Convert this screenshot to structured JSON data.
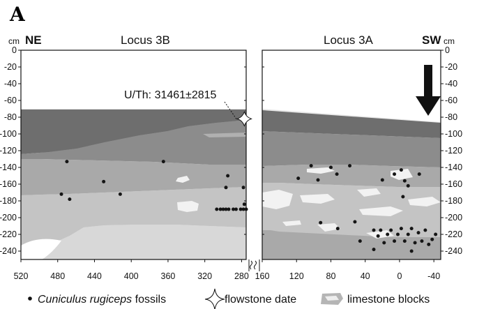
{
  "panel_label": "A",
  "units_left": "cm",
  "units_right": "cm",
  "direction_left": "NE",
  "direction_right": "SW",
  "locus_left": "Locus 3B",
  "locus_right": "Locus 3A",
  "date_label": "U/Th: 31461±2815",
  "depth_ticks": [
    "0",
    "-20",
    "-40",
    "-60",
    "-80",
    "-100",
    "-120",
    "-140",
    "-160",
    "-180",
    "-200",
    "-220",
    "-240"
  ],
  "x_ticks_left": [
    "520",
    "480",
    "440",
    "400",
    "360",
    "320",
    "280"
  ],
  "x_ticks_right": [
    "160",
    "120",
    "80",
    "40",
    "0",
    "-40"
  ],
  "legend": {
    "fossils_species": "Cuniculus rugiceps",
    "fossils_suffix": " fossils",
    "flowstone": "flowstone date",
    "limestone": "limestone blocks"
  },
  "colors": {
    "darkest": "#6e6e6e",
    "dark": "#8c8c8c",
    "mid": "#a9a9a9",
    "light": "#c4c4c4",
    "lightest": "#d8d8d8",
    "pale": "#e6e6e6",
    "block": "#f2f2f2",
    "dot": "#151515"
  },
  "chart_data": {
    "type": "scatter",
    "ylim": [
      -250,
      0
    ],
    "ylabel": "cm",
    "sections": [
      {
        "name": "Locus 3B",
        "xlim": [
          520,
          275
        ],
        "fossils": [
          [
            476,
            -172
          ],
          [
            470,
            -133
          ],
          [
            467,
            -178
          ],
          [
            430,
            -157
          ],
          [
            412,
            -172
          ],
          [
            365,
            -133
          ],
          [
            295,
            -150
          ],
          [
            297,
            -164
          ],
          [
            278,
            -164
          ],
          [
            277,
            -184
          ],
          [
            307,
            -190
          ],
          [
            303,
            -190
          ],
          [
            300,
            -190
          ],
          [
            297,
            -190
          ],
          [
            294,
            -190
          ],
          [
            289,
            -190
          ],
          [
            286,
            -190
          ],
          [
            281,
            -190
          ],
          [
            278,
            -190
          ],
          [
            275,
            -190
          ]
        ],
        "flowstone_date": [
          277,
          -82
        ]
      },
      {
        "name": "Locus 3A",
        "xlim": [
          160,
          -48
        ],
        "fossils": [
          [
            118,
            -153
          ],
          [
            103,
            -138
          ],
          [
            95,
            -155
          ],
          [
            80,
            -140
          ],
          [
            73,
            -148
          ],
          [
            58,
            -138
          ],
          [
            20,
            -155
          ],
          [
            6,
            -148
          ],
          [
            -2,
            -143
          ],
          [
            -6,
            -156
          ],
          [
            -10,
            -162
          ],
          [
            -23,
            -148
          ],
          [
            -4,
            -175
          ],
          [
            92,
            -206
          ],
          [
            72,
            -213
          ],
          [
            52,
            -205
          ],
          [
            46,
            -228
          ],
          [
            30,
            -215
          ],
          [
            25,
            -222
          ],
          [
            22,
            -215
          ],
          [
            18,
            -230
          ],
          [
            14,
            -220
          ],
          [
            10,
            -215
          ],
          [
            6,
            -228
          ],
          [
            2,
            -220
          ],
          [
            -2,
            -213
          ],
          [
            -6,
            -228
          ],
          [
            -10,
            -220
          ],
          [
            -14,
            -213
          ],
          [
            -18,
            -230
          ],
          [
            -22,
            -218
          ],
          [
            -26,
            -228
          ],
          [
            -30,
            -215
          ],
          [
            -34,
            -232
          ],
          [
            -38,
            -226
          ],
          [
            -42,
            -220
          ],
          [
            -14,
            -240
          ],
          [
            30,
            -238
          ]
        ]
      }
    ]
  }
}
